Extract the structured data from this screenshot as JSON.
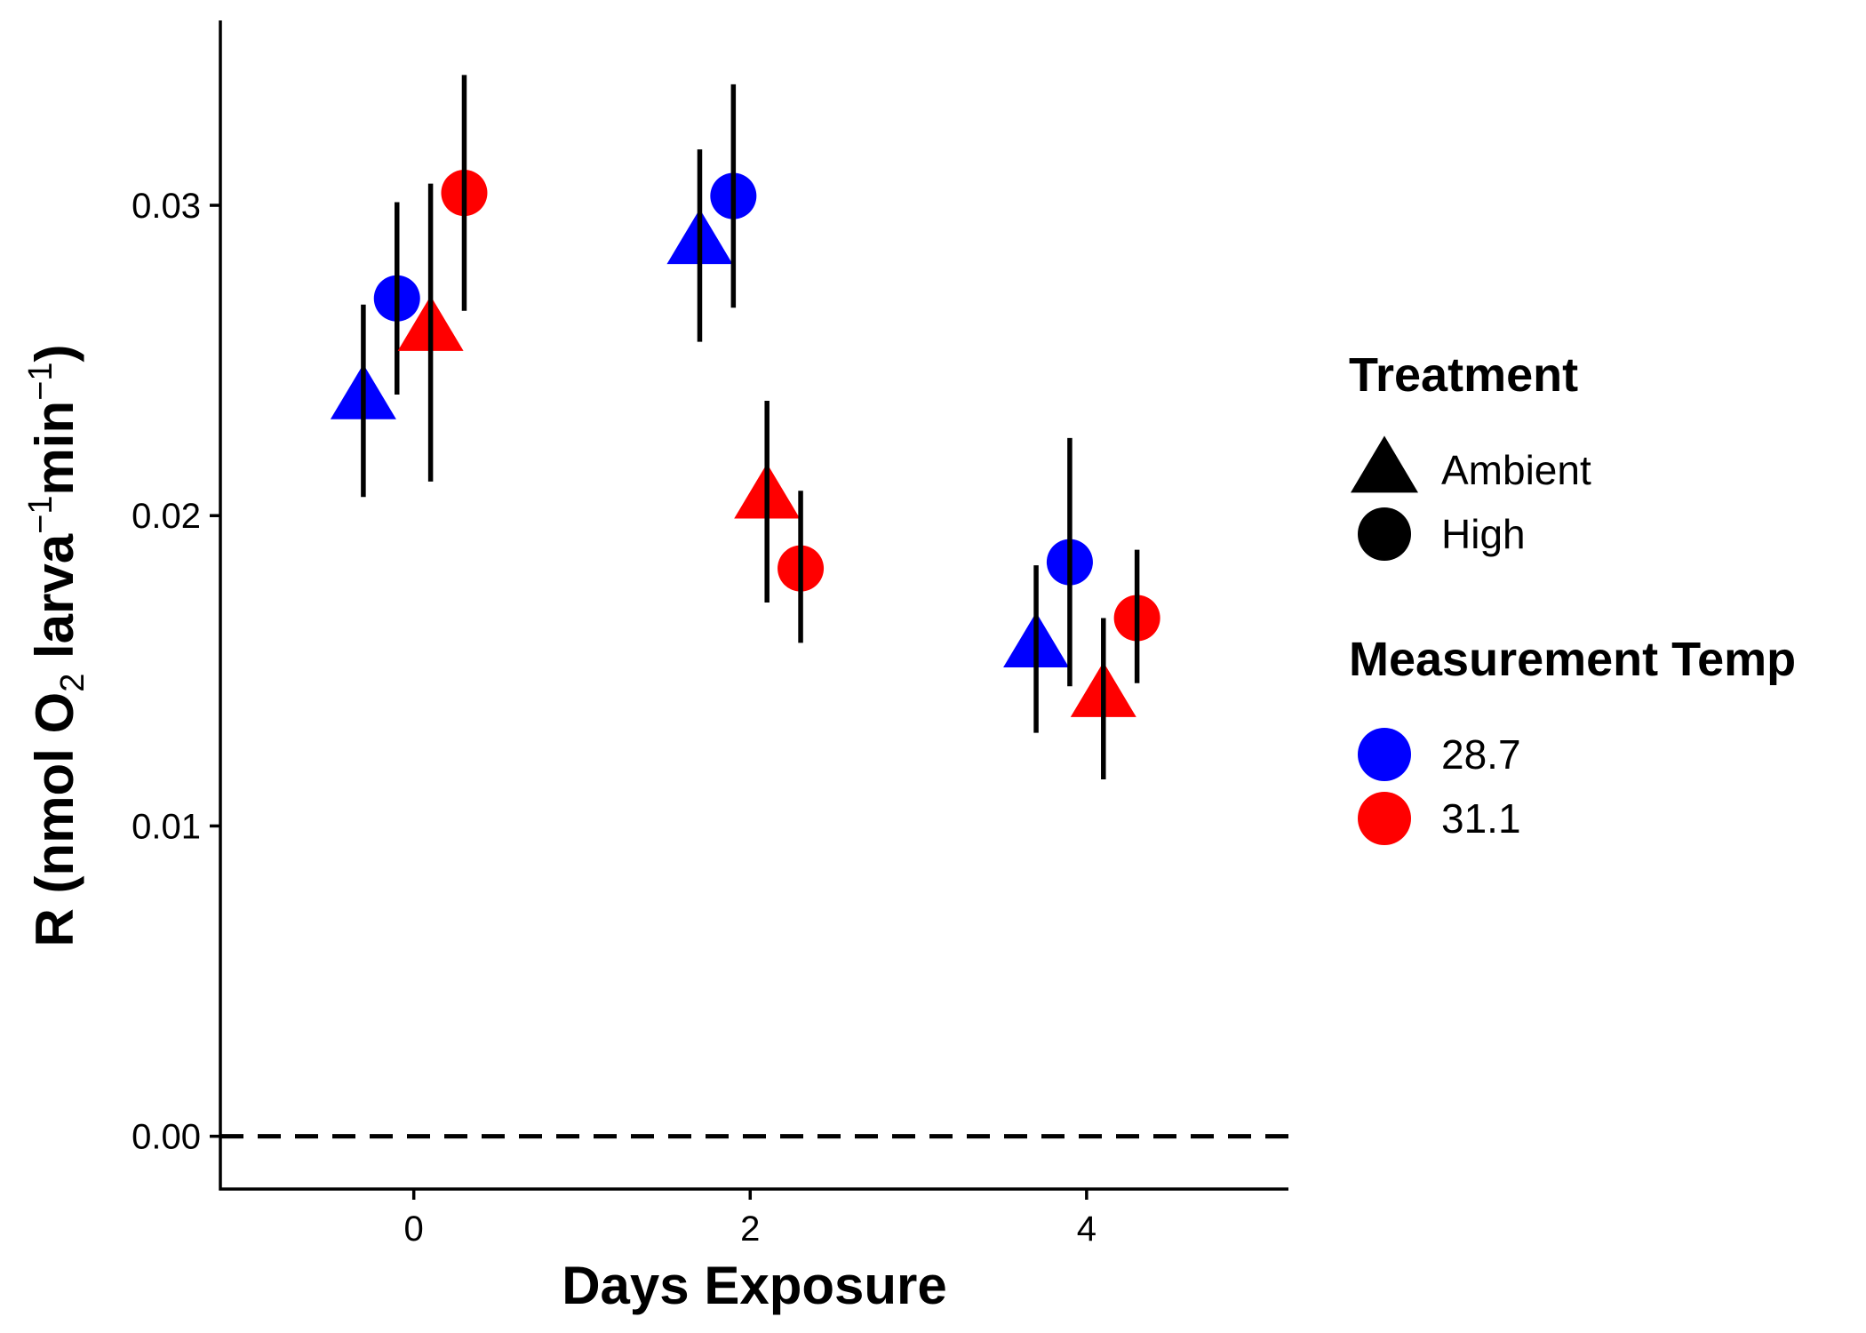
{
  "chart_data": {
    "type": "scatter",
    "xlabel": "Days Exposure",
    "ylabel": {
      "parts": [
        {
          "text": "R (nmol O",
          "shift": "none"
        },
        {
          "text": "2",
          "shift": "sub"
        },
        {
          "text": " larva",
          "shift": "none"
        },
        {
          "text": "−1",
          "shift": "super"
        },
        {
          "text": "min",
          "shift": "none"
        },
        {
          "text": "−1",
          "shift": "super"
        },
        {
          "text": ")",
          "shift": "none"
        }
      ]
    },
    "xlim": [
      -1.15,
      5.2
    ],
    "ylim": [
      -0.0017,
      0.0359
    ],
    "x_ticks": [
      {
        "value": 0,
        "label": "0"
      },
      {
        "value": 2,
        "label": "2"
      },
      {
        "value": 4,
        "label": "4"
      }
    ],
    "y_ticks": [
      {
        "value": 0,
        "label": "0.00"
      },
      {
        "value": 0.01,
        "label": "0.01"
      },
      {
        "value": 0.02,
        "label": "0.02"
      },
      {
        "value": 0.03,
        "label": "0.03"
      }
    ],
    "reference_line": {
      "y": 0,
      "style": "dashed"
    },
    "colors": {
      "28.7": "#0000ff",
      "31.1": "#ff0000"
    },
    "points": [
      {
        "day": 0,
        "x": -0.3,
        "treatment": "Ambient",
        "temp": "28.7",
        "y": 0.0237,
        "ymin": 0.0206,
        "ymax": 0.0268
      },
      {
        "day": 0,
        "x": -0.1,
        "treatment": "High",
        "temp": "28.7",
        "y": 0.027,
        "ymin": 0.0239,
        "ymax": 0.0301
      },
      {
        "day": 0,
        "x": 0.1,
        "treatment": "Ambient",
        "temp": "31.1",
        "y": 0.0259,
        "ymin": 0.0211,
        "ymax": 0.0307
      },
      {
        "day": 0,
        "x": 0.3,
        "treatment": "High",
        "temp": "31.1",
        "y": 0.0304,
        "ymin": 0.0266,
        "ymax": 0.0342
      },
      {
        "day": 2,
        "x": 1.7,
        "treatment": "Ambient",
        "temp": "28.7",
        "y": 0.0287,
        "ymin": 0.0256,
        "ymax": 0.0318
      },
      {
        "day": 2,
        "x": 1.9,
        "treatment": "High",
        "temp": "28.7",
        "y": 0.0303,
        "ymin": 0.0267,
        "ymax": 0.0339
      },
      {
        "day": 2,
        "x": 2.1,
        "treatment": "Ambient",
        "temp": "31.1",
        "y": 0.0205,
        "ymin": 0.0172,
        "ymax": 0.0237
      },
      {
        "day": 2,
        "x": 2.3,
        "treatment": "High",
        "temp": "31.1",
        "y": 0.0183,
        "ymin": 0.0159,
        "ymax": 0.0208
      },
      {
        "day": 4,
        "x": 3.7,
        "treatment": "Ambient",
        "temp": "28.7",
        "y": 0.0157,
        "ymin": 0.013,
        "ymax": 0.0184
      },
      {
        "day": 4,
        "x": 3.9,
        "treatment": "High",
        "temp": "28.7",
        "y": 0.0185,
        "ymin": 0.0145,
        "ymax": 0.0225
      },
      {
        "day": 4,
        "x": 4.1,
        "treatment": "Ambient",
        "temp": "31.1",
        "y": 0.0141,
        "ymin": 0.0115,
        "ymax": 0.0167
      },
      {
        "day": 4,
        "x": 4.3,
        "treatment": "High",
        "temp": "31.1",
        "y": 0.0167,
        "ymin": 0.0146,
        "ymax": 0.0189
      }
    ],
    "legend": {
      "position": "right",
      "groups": [
        {
          "title": "Treatment",
          "kind": "shape",
          "entries": [
            {
              "label": "Ambient",
              "shape": "triangle"
            },
            {
              "label": "High",
              "shape": "circle"
            }
          ]
        },
        {
          "title": "Measurement Temp",
          "kind": "color",
          "entries": [
            {
              "label": "28.7",
              "color": "#0000ff"
            },
            {
              "label": "31.1",
              "color": "#ff0000"
            }
          ]
        }
      ]
    }
  }
}
